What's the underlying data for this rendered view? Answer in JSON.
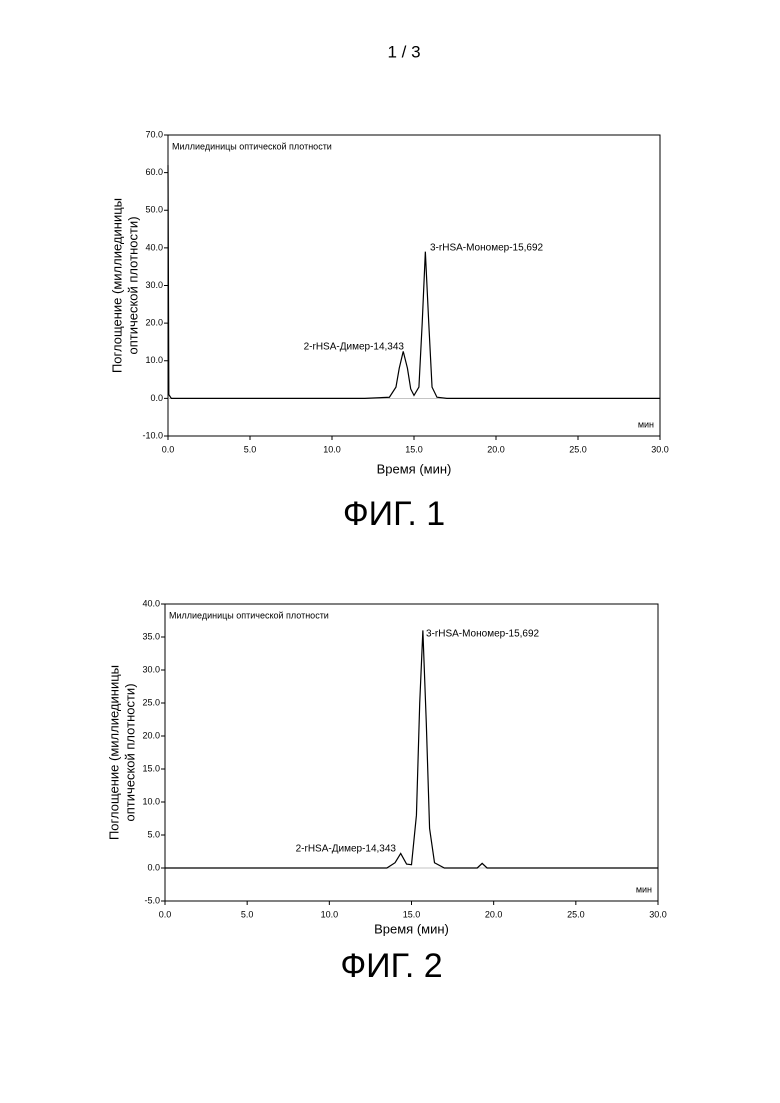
{
  "page_number": "1 / 3",
  "chart_data": [
    {
      "type": "line",
      "caption": "ФИГ. 1",
      "title": "Миллиединицы оптической плотности",
      "x_unit": "мин",
      "x_label": "Время (мин)",
      "y_label": [
        "Поглощение (миллиединицы",
        "оптической плотности)"
      ],
      "annotations": [
        "2-rHSA-Димер-14,343",
        "3-rHSA-Мономер-15,692"
      ],
      "color": "#000000",
      "x": [
        0,
        0.05,
        0.2,
        12,
        13.5,
        13.9,
        14.1,
        14.343,
        14.6,
        14.8,
        15.0,
        15.3,
        15.5,
        15.692,
        15.9,
        16.1,
        16.4,
        17,
        30
      ],
      "values": [
        62,
        1,
        0,
        0,
        0.3,
        3,
        8,
        12.5,
        8,
        2.5,
        0.8,
        3,
        20,
        39,
        20,
        3,
        0.3,
        0,
        0
      ],
      "xlim": [
        0,
        30
      ],
      "xticks": [
        {
          "value": 0,
          "label": "0.0"
        },
        {
          "value": 5,
          "label": "5.0"
        },
        {
          "value": 10,
          "label": "10.0"
        },
        {
          "value": 15,
          "label": "15.0"
        },
        {
          "value": 20,
          "label": "20.0"
        },
        {
          "value": 25,
          "label": "25.0"
        },
        {
          "value": 30,
          "label": "30.0"
        }
      ],
      "ylim": [
        -10,
        70
      ],
      "yticks": [
        {
          "value": -10,
          "label": "-10.0"
        },
        {
          "value": 0,
          "label": "0.0"
        },
        {
          "value": 10,
          "label": "10.0"
        },
        {
          "value": 20,
          "label": "20.0"
        },
        {
          "value": 30,
          "label": "30.0"
        },
        {
          "value": 40,
          "label": "40.0"
        },
        {
          "value": 50,
          "label": "50.0"
        },
        {
          "value": 60,
          "label": "60.0"
        },
        {
          "value": 70,
          "label": "70.0"
        }
      ]
    },
    {
      "type": "line",
      "caption": "ФИГ. 2",
      "title": "Миллиединицы оптической плотности",
      "x_unit": "мин",
      "x_label": "Время (мин)",
      "y_label": [
        "Поглощение (миллиединицы",
        "оптической плотности)"
      ],
      "annotations": [
        "2-rHSA-Димер-14,343",
        "3-rHSA-Мономер-15,692"
      ],
      "color": "#000000",
      "x": [
        0,
        13.5,
        14.0,
        14.343,
        14.7,
        15.0,
        15.3,
        15.5,
        15.692,
        15.9,
        16.1,
        16.4,
        17,
        19.0,
        19.3,
        19.6,
        30
      ],
      "values": [
        0,
        0,
        0.8,
        2.2,
        0.6,
        0.5,
        8,
        25,
        36,
        22,
        6,
        0.8,
        0,
        0,
        0.7,
        0,
        0
      ],
      "xlim": [
        0,
        30
      ],
      "xticks": [
        {
          "value": 0,
          "label": "0.0"
        },
        {
          "value": 5,
          "label": "5.0"
        },
        {
          "value": 10,
          "label": "10.0"
        },
        {
          "value": 15,
          "label": "15.0"
        },
        {
          "value": 20,
          "label": "20.0"
        },
        {
          "value": 25,
          "label": "25.0"
        },
        {
          "value": 30,
          "label": "30.0"
        }
      ],
      "ylim": [
        -5,
        40
      ],
      "yticks": [
        {
          "value": -5,
          "label": "-5.0"
        },
        {
          "value": 0,
          "label": "0.0"
        },
        {
          "value": 5,
          "label": "5.0"
        },
        {
          "value": 10,
          "label": "10.0"
        },
        {
          "value": 15,
          "label": "15.0"
        },
        {
          "value": 20,
          "label": "20.0"
        },
        {
          "value": 25,
          "label": "25.0"
        },
        {
          "value": 30,
          "label": "30.0"
        },
        {
          "value": 35,
          "label": "35.0"
        },
        {
          "value": 40,
          "label": "40.0"
        }
      ]
    }
  ]
}
